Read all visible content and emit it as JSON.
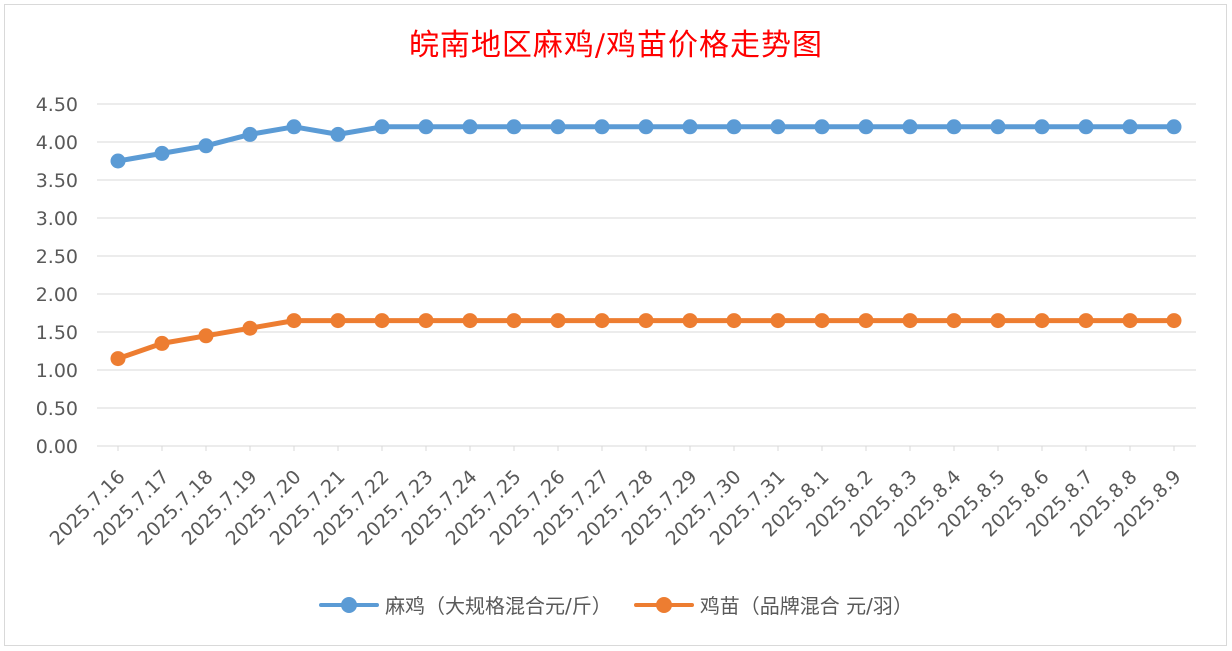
{
  "chart_data": {
    "type": "line",
    "title": "皖南地区麻鸡/鸡苗价格走势图",
    "categories": [
      "2025.7.16",
      "2025.7.17",
      "2025.7.18",
      "2025.7.19",
      "2025.7.20",
      "2025.7.21",
      "2025.7.22",
      "2025.7.23",
      "2025.7.24",
      "2025.7.25",
      "2025.7.26",
      "2025.7.27",
      "2025.7.28",
      "2025.7.29",
      "2025.7.30",
      "2025.7.31",
      "2025.8.1",
      "2025.8.2",
      "2025.8.3",
      "2025.8.4",
      "2025.8.5",
      "2025.8.6",
      "2025.8.7",
      "2025.8.8",
      "2025.8.9"
    ],
    "series": [
      {
        "name": "麻鸡（大规格混合元/斤）",
        "color": "#5b9bd5",
        "values": [
          3.75,
          3.85,
          3.95,
          4.1,
          4.2,
          4.1,
          4.2,
          4.2,
          4.2,
          4.2,
          4.2,
          4.2,
          4.2,
          4.2,
          4.2,
          4.2,
          4.2,
          4.2,
          4.2,
          4.2,
          4.2,
          4.2,
          4.2,
          4.2,
          4.2
        ]
      },
      {
        "name": "鸡苗（品牌混合 元/羽）",
        "color": "#ed7d31",
        "values": [
          1.15,
          1.35,
          1.45,
          1.55,
          1.65,
          1.65,
          1.65,
          1.65,
          1.65,
          1.65,
          1.65,
          1.65,
          1.65,
          1.65,
          1.65,
          1.65,
          1.65,
          1.65,
          1.65,
          1.65,
          1.65,
          1.65,
          1.65,
          1.65,
          1.65
        ]
      }
    ],
    "yticks": [
      "0.00",
      "0.50",
      "1.00",
      "1.50",
      "2.00",
      "2.50",
      "3.00",
      "3.50",
      "4.00",
      "4.50"
    ],
    "ylim": [
      0,
      4.5
    ],
    "grid": true,
    "legend_position": "bottom",
    "xlabel": "",
    "ylabel": ""
  }
}
